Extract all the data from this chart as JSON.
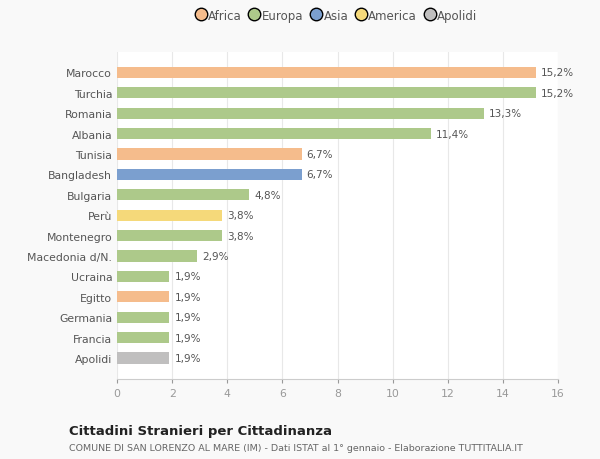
{
  "categories": [
    "Marocco",
    "Turchia",
    "Romania",
    "Albania",
    "Tunisia",
    "Bangladesh",
    "Bulgaria",
    "Perù",
    "Montenegro",
    "Macedonia d/N.",
    "Ucraina",
    "Egitto",
    "Germania",
    "Francia",
    "Apolidi"
  ],
  "values": [
    15.2,
    15.2,
    13.3,
    11.4,
    6.7,
    6.7,
    4.8,
    3.8,
    3.8,
    2.9,
    1.9,
    1.9,
    1.9,
    1.9,
    1.9
  ],
  "labels": [
    "15,2%",
    "15,2%",
    "13,3%",
    "11,4%",
    "6,7%",
    "6,7%",
    "4,8%",
    "3,8%",
    "3,8%",
    "2,9%",
    "1,9%",
    "1,9%",
    "1,9%",
    "1,9%",
    "1,9%"
  ],
  "colors": [
    "#f5bc8c",
    "#adc98a",
    "#adc98a",
    "#adc98a",
    "#f5bc8c",
    "#7b9fcf",
    "#adc98a",
    "#f5d97a",
    "#adc98a",
    "#adc98a",
    "#adc98a",
    "#f5bc8c",
    "#adc98a",
    "#adc98a",
    "#c0bfbf"
  ],
  "continent_colors": {
    "Africa": "#f5bc8c",
    "Europa": "#adc98a",
    "Asia": "#7b9fcf",
    "America": "#f5d97a",
    "Apolidi": "#c0bfbf"
  },
  "legend_labels": [
    "Africa",
    "Europa",
    "Asia",
    "America",
    "Apolidi"
  ],
  "title": "Cittadini Stranieri per Cittadinanza",
  "subtitle": "COMUNE DI SAN LORENZO AL MARE (IM) - Dati ISTAT al 1° gennaio - Elaborazione TUTTITALIA.IT",
  "xlim": [
    0,
    16
  ],
  "xticks": [
    0,
    2,
    4,
    6,
    8,
    10,
    12,
    14,
    16
  ],
  "plot_bg": "#ffffff",
  "fig_bg": "#f9f9f9",
  "grid_color": "#e8e8e8",
  "label_color": "#555555",
  "tick_color": "#999999",
  "bar_height": 0.55
}
